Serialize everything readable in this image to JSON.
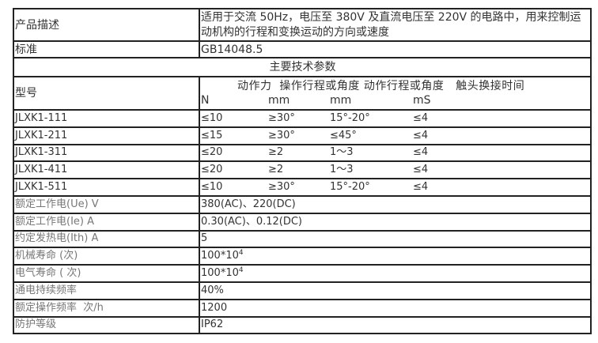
{
  "description": {
    "label": "产品描述",
    "value": "适用于交流 50Hz，电压至 380V 及直流电压至 220V 的电路中，用来控制运动机构的行程和变换运动的方向或速度"
  },
  "standard": {
    "label": "标准",
    "value": "GB14048.5"
  },
  "section_title": "主要技术参数",
  "model_header": {
    "label": "型号",
    "params": "动作力  操作行程或角度 动作行程或角度   触头换接时间",
    "units": [
      "N",
      "mm",
      "mm",
      "mS"
    ]
  },
  "models": [
    {
      "name": "JLXK1-111",
      "values": [
        "≤10",
        "≥30°",
        "15°-20°",
        "≤4"
      ]
    },
    {
      "name": "JLXK1-211",
      "values": [
        "≤15",
        "≥30°",
        "≤45°",
        "≤4"
      ]
    },
    {
      "name": "JLXK1-311",
      "values": [
        "≤20",
        "≥2",
        "1～3",
        "≤4"
      ]
    },
    {
      "name": "JLXK1-411",
      "values": [
        "≤20",
        "≥2",
        "1～3",
        "≤4"
      ]
    },
    {
      "name": "JLXK1-511",
      "values": [
        "≤10",
        "≥30°",
        "15°-20°",
        "≤4"
      ]
    }
  ],
  "specs": [
    {
      "label": "额定工作电(Ue) V",
      "value": "380(AC)、220(DC)"
    },
    {
      "label": "额定工作电(Ie) A",
      "value": "0.30(AC)、0.12(DC)"
    },
    {
      "label": "约定发热电(Ith) A",
      "value": "5"
    },
    {
      "label": "机械寿命 (次)",
      "value": "100*10",
      "sup": "4"
    },
    {
      "label": "电气寿命 ( 次)",
      "value": "100*10",
      "sup": "4"
    },
    {
      "label": "通电持续频率",
      "value": "40%"
    },
    {
      "label": "额定操作频率  次/h",
      "value": "1200"
    },
    {
      "label": "防护等级",
      "value": "IP62"
    }
  ]
}
